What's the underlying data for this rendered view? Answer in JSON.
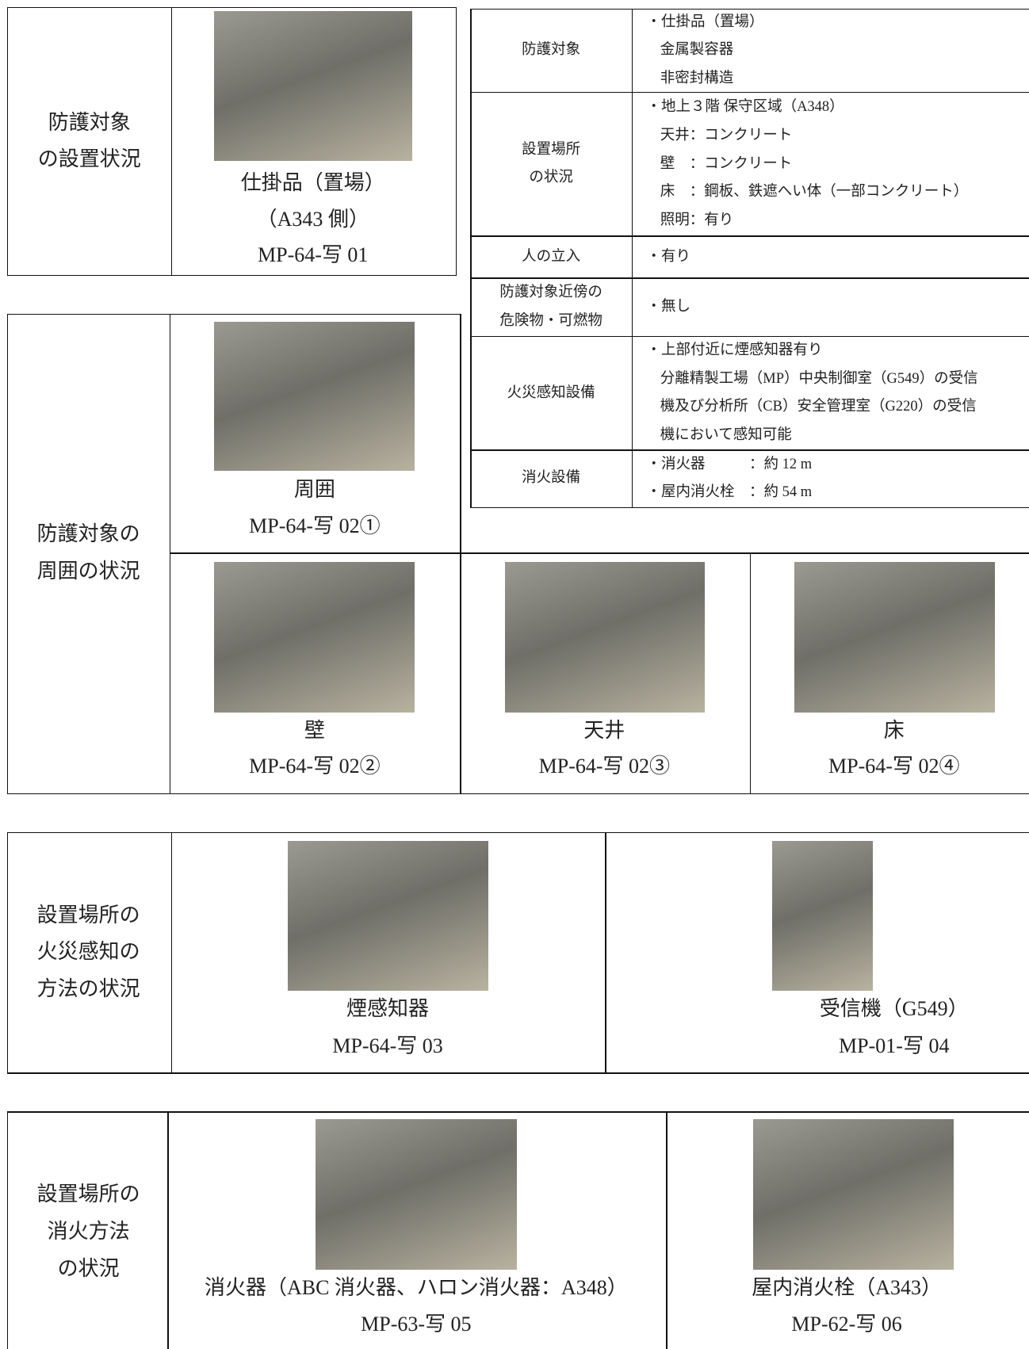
{
  "installation": {
    "label": [
      "防護対象",
      "の設置状況"
    ],
    "photos": [
      {
        "caption": [
          "仕掛品（置場）",
          "（A343 側）",
          "MP-64-写 01"
        ]
      }
    ]
  },
  "overview": {
    "rows": [
      {
        "item": [
          "防護対象"
        ],
        "details": [
          "・仕掛品（置場）",
          "金属製容器",
          "非密封構造"
        ]
      },
      {
        "item": [
          "設置場所",
          "の状況"
        ],
        "details": [
          "・地上３階 保守区域（A348）",
          "天井：コンクリート",
          "壁　：コンクリート",
          "床　：鋼板、鉄遮へい体（一部コンクリート）",
          "照明：有り"
        ]
      },
      {
        "item": [
          "人の立入"
        ],
        "details": [
          "・有り"
        ]
      },
      {
        "item": [
          "防護対象近傍の",
          "危険物・可燃物"
        ],
        "details": [
          "・無し"
        ]
      },
      {
        "item": [
          "火災感知設備"
        ],
        "details": [
          "・上部付近に煙感知器有り",
          "分離精製工場（MP）中央制御室（G549）の受信",
          "機及び分析所（CB）安全管理室（G220）の受信",
          "機において感知可能"
        ]
      },
      {
        "item": [
          "消火設備"
        ],
        "details": [
          "・消火器　　　：約 12 m",
          "・屋内消火栓　：約 54 m"
        ]
      }
    ]
  },
  "surroundings": {
    "label": [
      "防護対象の",
      "周囲の状況"
    ],
    "photos": [
      {
        "caption": [
          "周囲",
          "MP-64-写 02①"
        ]
      },
      {
        "caption": [
          "壁",
          "MP-64-写 02②"
        ]
      },
      {
        "caption": [
          "天井",
          "MP-64-写 02③"
        ]
      },
      {
        "caption": [
          "床",
          "MP-64-写 02④"
        ]
      }
    ]
  },
  "detection": {
    "label": [
      "設置場所の",
      "火災感知の",
      "方法の状況"
    ],
    "photos": [
      {
        "caption": [
          "煙感知器",
          "MP-64-写 03"
        ]
      },
      {
        "caption": [
          "受信機（G549）",
          "MP-01-写 04"
        ]
      }
    ]
  },
  "extinguishing": {
    "label": [
      "設置場所の",
      "消火方法",
      "の状況"
    ],
    "photos": [
      {
        "caption": [
          "消火器（ABC 消火器、ハロン消火器：A348）",
          "MP-63-写 05"
        ]
      },
      {
        "caption": [
          "屋内消火栓（A343）",
          "MP-62-写 06"
        ]
      }
    ]
  }
}
